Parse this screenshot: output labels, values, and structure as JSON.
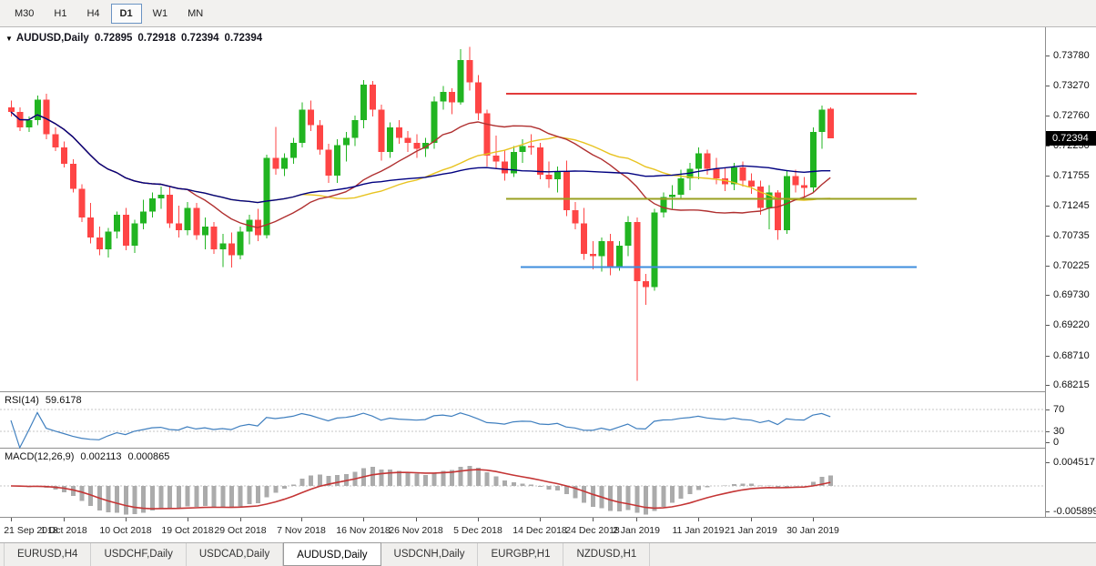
{
  "toolbar": {
    "timeframes": [
      {
        "label": "M30",
        "active": false
      },
      {
        "label": "H1",
        "active": false
      },
      {
        "label": "H4",
        "active": false
      },
      {
        "label": "D1",
        "active": true
      },
      {
        "label": "W1",
        "active": false
      },
      {
        "label": "MN",
        "active": false
      }
    ]
  },
  "icons": {
    "dropdown_marker": "▼"
  },
  "chart": {
    "title": {
      "symbol": "AUDUSD,Daily",
      "open": "0.72895",
      "high": "0.72918",
      "low": "0.72394",
      "close": "0.72394"
    },
    "current_price": "0.72394",
    "price_axis_labels": [
      "0.73780",
      "0.73270",
      "0.72760",
      "0.72250",
      "0.71755",
      "0.71245",
      "0.70735",
      "0.70225",
      "0.69730",
      "0.69220",
      "0.68710",
      "0.68215"
    ],
    "hlines": [
      {
        "name": "resistance-line",
        "price": 0.7315,
        "color": "#e23b3b"
      },
      {
        "name": "pivot-line",
        "price": 0.7137,
        "color": "#9aa021"
      },
      {
        "name": "support-line",
        "price": 0.7022,
        "color": "#3e8ede"
      }
    ],
    "colors": {
      "up_candle": "#21b421",
      "down_candle": "#fe4545",
      "rsi_line": "#3f7fbf",
      "macd_histogram": "#ababab",
      "macd_signal": "#c43535",
      "separator": "#909090",
      "level_dashed": "#c6c6c6",
      "badge_bg": "#000000",
      "badge_text": "#ffffff"
    }
  },
  "chart_data": {
    "type": "candlestick",
    "symbol": "AUDUSD",
    "timeframe": "Daily",
    "ylim": [
      0.6812,
      0.7427
    ],
    "ohlc": [
      [
        0.7292,
        0.7303,
        0.7276,
        0.7284
      ],
      [
        0.7284,
        0.7292,
        0.7252,
        0.7258
      ],
      [
        0.7258,
        0.7276,
        0.725,
        0.727
      ],
      [
        0.727,
        0.7312,
        0.7262,
        0.7305
      ],
      [
        0.7305,
        0.7315,
        0.7238,
        0.7246
      ],
      [
        0.7246,
        0.7258,
        0.7218,
        0.7224
      ],
      [
        0.7224,
        0.7234,
        0.719,
        0.7196
      ],
      [
        0.7196,
        0.7204,
        0.7148,
        0.7154
      ],
      [
        0.7154,
        0.7162,
        0.7098,
        0.7106
      ],
      [
        0.7106,
        0.713,
        0.7062,
        0.7072
      ],
      [
        0.7072,
        0.709,
        0.7042,
        0.7052
      ],
      [
        0.7052,
        0.7088,
        0.7038,
        0.7082
      ],
      [
        0.7082,
        0.7116,
        0.707,
        0.711
      ],
      [
        0.711,
        0.7122,
        0.705,
        0.7058
      ],
      [
        0.7058,
        0.7102,
        0.7046,
        0.7096
      ],
      [
        0.7096,
        0.7136,
        0.7086,
        0.7116
      ],
      [
        0.7116,
        0.7148,
        0.7106,
        0.7138
      ],
      [
        0.7138,
        0.7158,
        0.712,
        0.7144
      ],
      [
        0.7144,
        0.7158,
        0.7088,
        0.7096
      ],
      [
        0.7096,
        0.7126,
        0.7072,
        0.7084
      ],
      [
        0.7084,
        0.7132,
        0.7076,
        0.7122
      ],
      [
        0.7122,
        0.713,
        0.7068,
        0.7076
      ],
      [
        0.7076,
        0.7106,
        0.7052,
        0.709
      ],
      [
        0.709,
        0.7098,
        0.7044,
        0.7052
      ],
      [
        0.7052,
        0.7078,
        0.7022,
        0.7062
      ],
      [
        0.7062,
        0.708,
        0.7021,
        0.7042
      ],
      [
        0.7042,
        0.709,
        0.7035,
        0.7082
      ],
      [
        0.7082,
        0.711,
        0.706,
        0.7102
      ],
      [
        0.7102,
        0.712,
        0.7066,
        0.7076
      ],
      [
        0.7076,
        0.7212,
        0.707,
        0.7206
      ],
      [
        0.7206,
        0.7259,
        0.7178,
        0.7188
      ],
      [
        0.7188,
        0.7214,
        0.7176,
        0.7206
      ],
      [
        0.7206,
        0.724,
        0.7196,
        0.7232
      ],
      [
        0.7232,
        0.73,
        0.7224,
        0.7288
      ],
      [
        0.7288,
        0.7303,
        0.7252,
        0.7262
      ],
      [
        0.7262,
        0.727,
        0.7212,
        0.722
      ],
      [
        0.722,
        0.723,
        0.7164,
        0.7176
      ],
      [
        0.7176,
        0.7238,
        0.7164,
        0.7228
      ],
      [
        0.7228,
        0.725,
        0.72,
        0.724
      ],
      [
        0.724,
        0.7278,
        0.7226,
        0.727
      ],
      [
        0.727,
        0.7338,
        0.7256,
        0.733
      ],
      [
        0.733,
        0.7336,
        0.7276,
        0.7288
      ],
      [
        0.7288,
        0.7296,
        0.7202,
        0.7216
      ],
      [
        0.7216,
        0.7266,
        0.7206,
        0.7258
      ],
      [
        0.7258,
        0.727,
        0.723,
        0.724
      ],
      [
        0.724,
        0.7252,
        0.7216,
        0.7232
      ],
      [
        0.7232,
        0.7246,
        0.7206,
        0.7222
      ],
      [
        0.7222,
        0.724,
        0.7208,
        0.7232
      ],
      [
        0.7232,
        0.731,
        0.7222,
        0.7302
      ],
      [
        0.7302,
        0.7328,
        0.7288,
        0.7318
      ],
      [
        0.7318,
        0.7324,
        0.728,
        0.73
      ],
      [
        0.73,
        0.739,
        0.7296,
        0.7372
      ],
      [
        0.7372,
        0.7394,
        0.732,
        0.7334
      ],
      [
        0.7334,
        0.7346,
        0.727,
        0.7282
      ],
      [
        0.7282,
        0.7288,
        0.7192,
        0.721
      ],
      [
        0.721,
        0.7244,
        0.7188,
        0.72
      ],
      [
        0.72,
        0.722,
        0.7168,
        0.718
      ],
      [
        0.718,
        0.7226,
        0.7174,
        0.7216
      ],
      [
        0.7216,
        0.7238,
        0.7198,
        0.7226
      ],
      [
        0.7226,
        0.7246,
        0.7212,
        0.7224
      ],
      [
        0.7224,
        0.7232,
        0.717,
        0.7178
      ],
      [
        0.7178,
        0.72,
        0.7156,
        0.717
      ],
      [
        0.717,
        0.7192,
        0.7148,
        0.7184
      ],
      [
        0.7184,
        0.7202,
        0.7108,
        0.7118
      ],
      [
        0.7118,
        0.7132,
        0.7086,
        0.7096
      ],
      [
        0.7096,
        0.7122,
        0.7034,
        0.7044
      ],
      [
        0.7044,
        0.7066,
        0.7018,
        0.704
      ],
      [
        0.704,
        0.7072,
        0.7014,
        0.7066
      ],
      [
        0.7066,
        0.7078,
        0.7008,
        0.7022
      ],
      [
        0.7022,
        0.7066,
        0.7016,
        0.7058
      ],
      [
        0.7058,
        0.7108,
        0.704,
        0.7098
      ],
      [
        0.7098,
        0.7106,
        0.683,
        0.6998
      ],
      [
        0.6998,
        0.701,
        0.6958,
        0.6988
      ],
      [
        0.6988,
        0.712,
        0.6982,
        0.7114
      ],
      [
        0.7114,
        0.7148,
        0.7106,
        0.714
      ],
      [
        0.714,
        0.716,
        0.712,
        0.7144
      ],
      [
        0.7144,
        0.7186,
        0.7136,
        0.7172
      ],
      [
        0.7172,
        0.7198,
        0.7152,
        0.7188
      ],
      [
        0.7188,
        0.7224,
        0.717,
        0.7214
      ],
      [
        0.7214,
        0.722,
        0.7178,
        0.7188
      ],
      [
        0.7188,
        0.7206,
        0.7162,
        0.7172
      ],
      [
        0.7172,
        0.719,
        0.715,
        0.7162
      ],
      [
        0.7162,
        0.7198,
        0.7152,
        0.719
      ],
      [
        0.719,
        0.72,
        0.7158,
        0.7168
      ],
      [
        0.7168,
        0.718,
        0.7146,
        0.7158
      ],
      [
        0.7158,
        0.7168,
        0.711,
        0.7122
      ],
      [
        0.7122,
        0.716,
        0.7086,
        0.7148
      ],
      [
        0.7148,
        0.7152,
        0.7068,
        0.7084
      ],
      [
        0.7084,
        0.7184,
        0.7078,
        0.7176
      ],
      [
        0.7176,
        0.7186,
        0.7148,
        0.716
      ],
      [
        0.716,
        0.7174,
        0.714,
        0.7156
      ],
      [
        0.7156,
        0.7258,
        0.7148,
        0.725
      ],
      [
        0.725,
        0.7295,
        0.7222,
        0.7288
      ],
      [
        0.72895,
        0.72918,
        0.72394,
        0.72394
      ]
    ],
    "x_labels": [
      {
        "i": 0,
        "t": "21 Sep 2018"
      },
      {
        "i": 6,
        "t": "1 Oct 2018"
      },
      {
        "i": 13,
        "t": "10 Oct 2018"
      },
      {
        "i": 20,
        "t": "19 Oct 2018"
      },
      {
        "i": 26,
        "t": "29 Oct 2018"
      },
      {
        "i": 33,
        "t": "7 Nov 2018"
      },
      {
        "i": 40,
        "t": "16 Nov 2018"
      },
      {
        "i": 46,
        "t": "26 Nov 2018"
      },
      {
        "i": 53,
        "t": "5 Dec 2018"
      },
      {
        "i": 60,
        "t": "14 Dec 2018"
      },
      {
        "i": 66,
        "t": "24 Dec 2018"
      },
      {
        "i": 71,
        "t": "2 Jan 2019"
      },
      {
        "i": 78,
        "t": "11 Jan 2019"
      },
      {
        "i": 84,
        "t": "21 Jan 2019"
      },
      {
        "i": 91,
        "t": "30 Jan 2019"
      }
    ],
    "overlays": [
      {
        "name": "ma-yellow",
        "period": 34,
        "color": "#e8c320"
      },
      {
        "name": "ma-red",
        "period": 21,
        "color": "#b03030"
      },
      {
        "name": "ma-navy",
        "period": 55,
        "color": "#000080"
      }
    ]
  },
  "rsi": {
    "label": "RSI(14)",
    "value": "59.6178",
    "period": 14,
    "levels": [
      "70",
      "30",
      "0"
    ]
  },
  "macd": {
    "label": "MACD(12,26,9)",
    "value_main": "0.002113",
    "value_signal": "0.000865",
    "fast": 12,
    "slow": 26,
    "signal": 9,
    "axis_labels": [
      "0.004517",
      "-0.005899"
    ]
  },
  "tabs": [
    {
      "label": "EURUSD,H4",
      "active": false
    },
    {
      "label": "USDCHF,Daily",
      "active": false
    },
    {
      "label": "USDCAD,Daily",
      "active": false
    },
    {
      "label": "AUDUSD,Daily",
      "active": true
    },
    {
      "label": "USDCNH,Daily",
      "active": false
    },
    {
      "label": "EURGBP,H1",
      "active": false
    },
    {
      "label": "NZDUSD,H1",
      "active": false
    }
  ]
}
